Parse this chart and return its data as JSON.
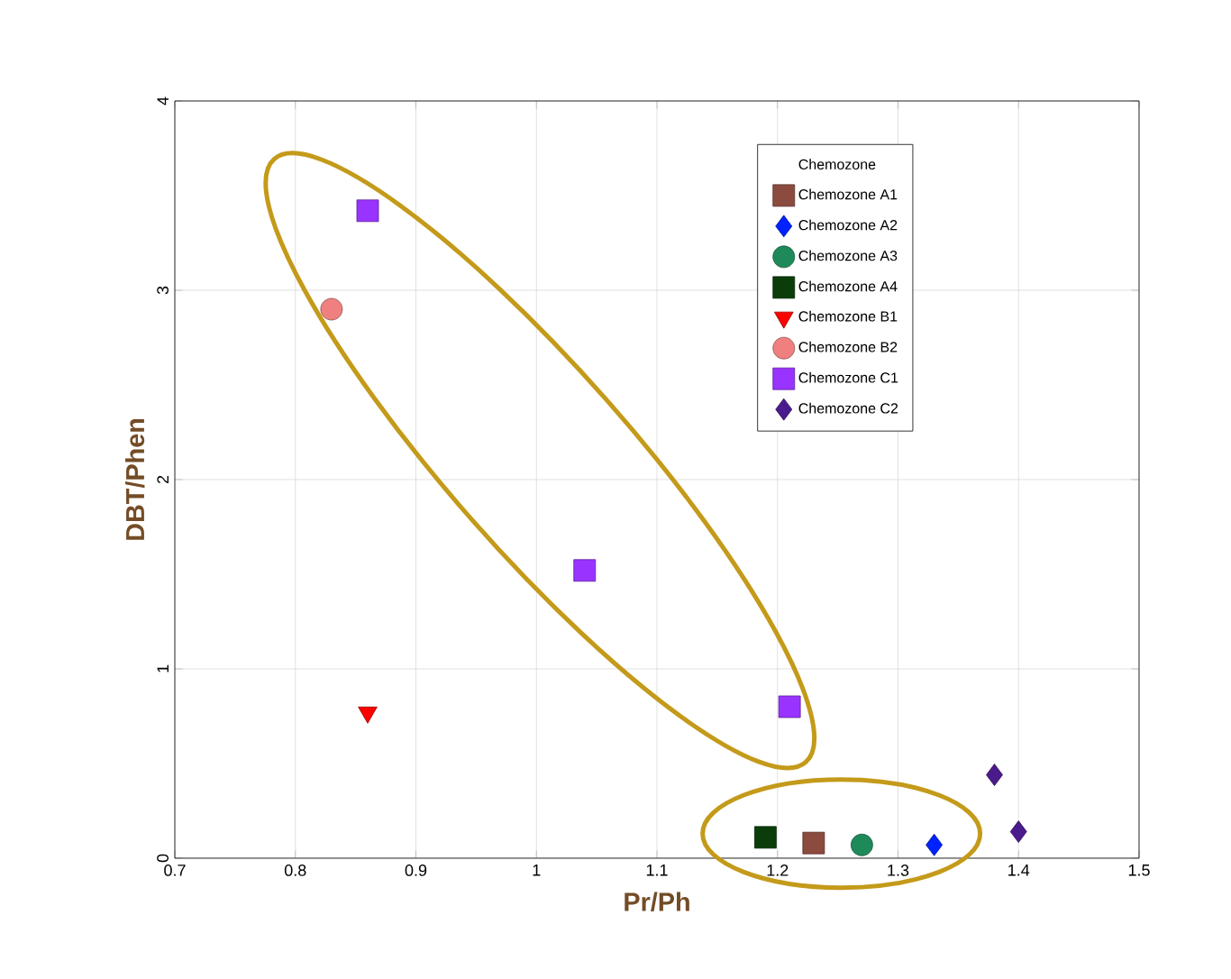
{
  "chart_data": {
    "type": "scatter",
    "xlabel": "Pr/Ph",
    "ylabel": "DBT/Phen",
    "legend_title": "Chemozone",
    "xlim": [
      0.7,
      1.5
    ],
    "ylim": [
      0,
      4
    ],
    "xticks": [
      0.7,
      0.8,
      0.9,
      1,
      1.1,
      1.2,
      1.3,
      1.4,
      1.5
    ],
    "yticks": [
      0,
      1,
      2,
      3,
      4
    ],
    "grid": true,
    "legend": "top right",
    "series": [
      {
        "name": "Chemozone A1",
        "color": "#8c4b3f",
        "marker": "square",
        "x": [
          1.23
        ],
        "values": [
          0.08
        ]
      },
      {
        "name": "Chemozone A2",
        "color": "#0022ff",
        "marker": "diamond",
        "x": [
          1.33
        ],
        "values": [
          0.07
        ]
      },
      {
        "name": "Chemozone A3",
        "color": "#1e8a5a",
        "marker": "circle",
        "x": [
          1.27
        ],
        "values": [
          0.07
        ]
      },
      {
        "name": "Chemozone A4",
        "color": "#0a3d0a",
        "marker": "square",
        "x": [
          1.19
        ],
        "values": [
          0.11
        ]
      },
      {
        "name": "Chemozone B1",
        "color": "#ff0000",
        "marker": "triangle",
        "x": [
          0.86
        ],
        "values": [
          0.77
        ]
      },
      {
        "name": "Chemozone B2",
        "color": "#f08080",
        "marker": "circle",
        "x": [
          0.83
        ],
        "values": [
          2.9
        ]
      },
      {
        "name": "Chemozone C1",
        "color": "#9933ff",
        "marker": "square",
        "x": [
          0.86,
          1.04,
          1.21
        ],
        "values": [
          3.42,
          1.52,
          0.8
        ]
      },
      {
        "name": "Chemozone C2",
        "color": "#4b1a8c",
        "marker": "diamond",
        "x": [
          1.38,
          1.4
        ],
        "values": [
          0.44,
          0.14
        ]
      }
    ]
  }
}
